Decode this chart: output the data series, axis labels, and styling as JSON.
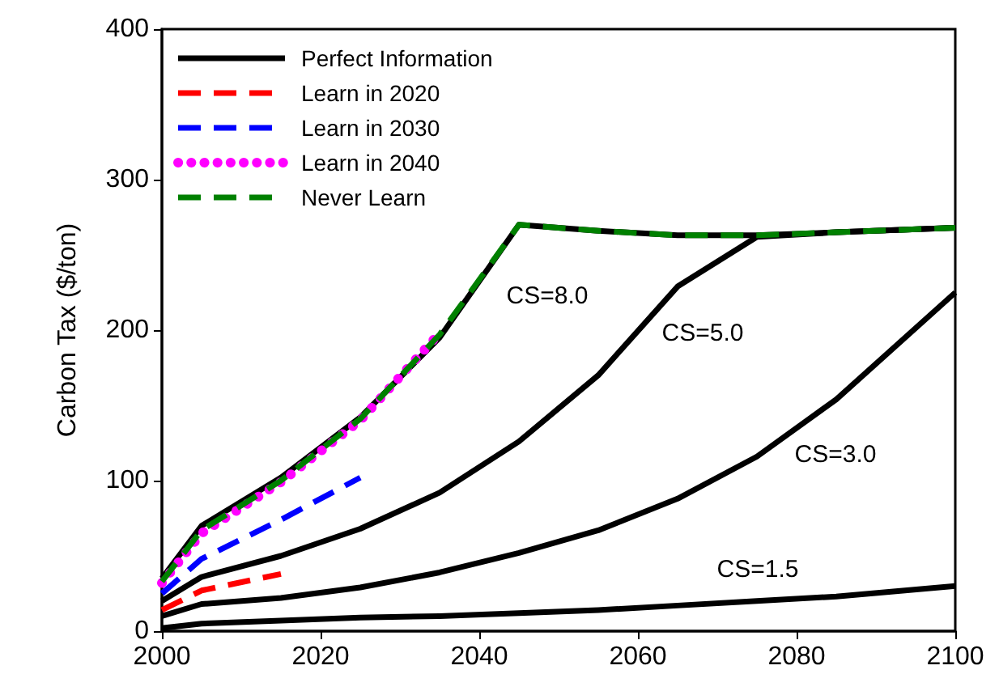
{
  "chart_data": {
    "type": "line",
    "ylabel": "Carbon Tax ($/ton)",
    "xlim": [
      2000,
      2100
    ],
    "xticks": [
      2000,
      2020,
      2040,
      2060,
      2080,
      2100
    ],
    "ylim": [
      0,
      400
    ],
    "yticks": [
      0,
      100,
      200,
      300,
      400
    ],
    "grid": false,
    "legend": "top left",
    "marker": "none",
    "series": [
      {
        "name": "Perfect Information",
        "color": "#000000",
        "line_style": "solid",
        "x": [
          2000,
          2005,
          2015,
          2025,
          2035,
          2045,
          2055,
          2065,
          2075,
          2085,
          2100
        ],
        "values": [
          35,
          70,
          102,
          142,
          195,
          270,
          266,
          263,
          263,
          265,
          268
        ]
      },
      {
        "color": "#000000",
        "line_style": "solid",
        "x": [
          2000,
          2005,
          2015,
          2025,
          2035,
          2045,
          2055,
          2065,
          2075,
          2085,
          2100
        ],
        "values": [
          20,
          36,
          50,
          68,
          92,
          126,
          170,
          229,
          262,
          265,
          268
        ]
      },
      {
        "color": "#000000",
        "line_style": "solid",
        "x": [
          2000,
          2005,
          2015,
          2025,
          2035,
          2045,
          2055,
          2065,
          2075,
          2085,
          2100
        ],
        "values": [
          10,
          18,
          22,
          29,
          39,
          52,
          67,
          88,
          116,
          154,
          225
        ]
      },
      {
        "color": "#000000",
        "line_style": "solid",
        "x": [
          2000,
          2005,
          2015,
          2025,
          2035,
          2045,
          2055,
          2065,
          2075,
          2085,
          2100
        ],
        "values": [
          2,
          5,
          7,
          9,
          10,
          12,
          14,
          17,
          20,
          23,
          30
        ]
      },
      {
        "name": "Learn in 2020",
        "color": "#ff0000",
        "line_style": "dashed",
        "x": [
          2000,
          2005,
          2015
        ],
        "values": [
          14,
          27,
          38
        ]
      },
      {
        "name": "Learn in 2030",
        "color": "#0000ff",
        "line_style": "dashed",
        "x": [
          2000,
          2005,
          2015,
          2025
        ],
        "values": [
          25,
          48,
          74,
          102
        ]
      },
      {
        "name": "Learn in 2040",
        "color": "#ff00ff",
        "line_style": "dotted",
        "x": [
          2000,
          2005,
          2015,
          2025,
          2035
        ],
        "values": [
          32,
          65,
          99,
          140,
          198
        ]
      },
      {
        "name": "Never Learn",
        "color": "#008000",
        "line_style": "dashed",
        "x": [
          2000,
          2005,
          2015,
          2025,
          2035,
          2045,
          2055,
          2065,
          2075,
          2085,
          2100
        ],
        "values": [
          33,
          67,
          100,
          141,
          197,
          270,
          266,
          263,
          263,
          265,
          268
        ]
      }
    ],
    "annotations": [
      "CS=8.0",
      "CS=5.0",
      "CS=3.0",
      "CS=1.5"
    ]
  }
}
